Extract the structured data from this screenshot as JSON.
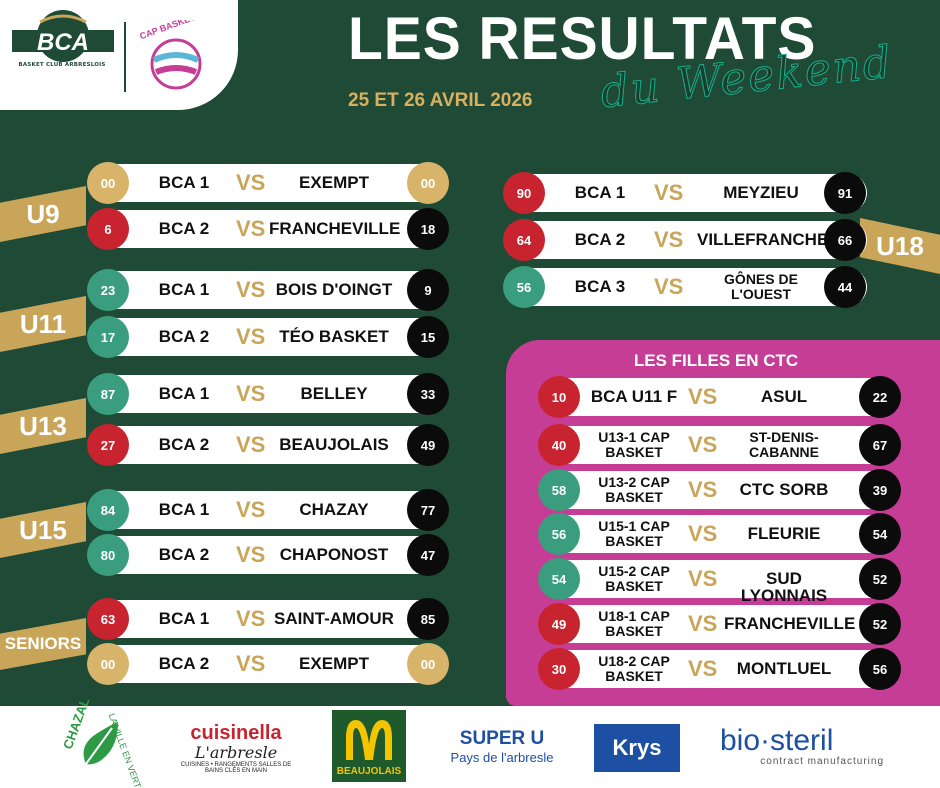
{
  "header": {
    "title": "LES RESULTATS",
    "subtitle": "du Weekend",
    "date": "25 ET 26 AVRIL 2026",
    "club_logo_text": "BCA",
    "club_logo_sub": "BASKET CLUB ARBRESLOIS",
    "cap_logo_text": "CAP BASKET"
  },
  "vs_label": "VS",
  "categories": {
    "u9": "U9",
    "u11": "U11",
    "u13": "U13",
    "u15": "U15",
    "seniors": "SENIORS",
    "u18": "U18"
  },
  "left_matches": [
    {
      "home_score": "00",
      "home": "BCA 1",
      "away": "EXEMPT",
      "away_score": "00"
    },
    {
      "home_score": "6",
      "home": "BCA 2",
      "away": "FRANCHEVILLE",
      "away_score": "18"
    },
    {
      "home_score": "23",
      "home": "BCA 1",
      "away": "BOIS D'OINGT",
      "away_score": "9"
    },
    {
      "home_score": "17",
      "home": "BCA 2",
      "away": "TÉO BASKET",
      "away_score": "15"
    },
    {
      "home_score": "87",
      "home": "BCA 1",
      "away": "BELLEY",
      "away_score": "33"
    },
    {
      "home_score": "27",
      "home": "BCA 2",
      "away": "BEAUJOLAIS",
      "away_score": "49"
    },
    {
      "home_score": "84",
      "home": "BCA 1",
      "away": "CHAZAY",
      "away_score": "77"
    },
    {
      "home_score": "80",
      "home": "BCA 2",
      "away": "CHAPONOST",
      "away_score": "47"
    },
    {
      "home_score": "63",
      "home": "BCA 1",
      "away": "SAINT-AMOUR",
      "away_score": "85"
    },
    {
      "home_score": "00",
      "home": "BCA 2",
      "away": "EXEMPT",
      "away_score": "00"
    }
  ],
  "u18_matches": [
    {
      "home_score": "90",
      "home": "BCA 1",
      "away": "MEYZIEU",
      "away_score": "91"
    },
    {
      "home_score": "64",
      "home": "BCA 2",
      "away": "VILLEFRANCHE",
      "away_score": "66"
    },
    {
      "home_score": "56",
      "home": "BCA 3",
      "away": "GÔNES DE L'OUEST",
      "away_score": "44"
    }
  ],
  "ctc": {
    "title": "LES FILLES EN CTC",
    "matches": [
      {
        "home_score": "10",
        "home": "BCA U11 F",
        "away": "ASUL",
        "away_score": "22"
      },
      {
        "home_score": "40",
        "home": "U13-1 CAP BASKET",
        "away": "ST-DENIS-CABANNE",
        "away_score": "67"
      },
      {
        "home_score": "58",
        "home": "U13-2 CAP BASKET",
        "away": "CTC SORB",
        "away_score": "39"
      },
      {
        "home_score": "56",
        "home": "U15-1 CAP BASKET",
        "away": "FLEURIE",
        "away_score": "54"
      },
      {
        "home_score": "54",
        "home": "U15-2 CAP BASKET",
        "away": "SUD LYONNAIS",
        "away_score": "52"
      },
      {
        "home_score": "49",
        "home": "U18-1 CAP BASKET",
        "away": "FRANCHEVILLE",
        "away_score": "52"
      },
      {
        "home_score": "30",
        "home": "U18-2 CAP BASKET",
        "away": "MONTLUEL",
        "away_score": "56"
      }
    ]
  },
  "sponsors": {
    "chazal": {
      "name": "CHAZAL",
      "tagline": "LA VILLE EN VERT"
    },
    "cuisinella": {
      "name": "cuisinella",
      "town": "L'arbresle",
      "tagline": "CUISINES • RANGEMENTS SALLES DE BAINS CLÉS EN MAIN"
    },
    "mcdonalds": {
      "name": "BEAUJOLAIS"
    },
    "superu": {
      "name": "SUPER U",
      "tagline": "Pays de l'arbresle"
    },
    "krys": {
      "name": "Krys"
    },
    "biosteril": {
      "name": "bio·steril",
      "tagline": "contract manufacturing"
    }
  },
  "colors": {
    "background": "#1f4a36",
    "gold": "#c9a55a",
    "pink": "#c63d96",
    "score_red": "#c8242f",
    "score_green": "#3a9e7e",
    "score_black": "#0b0b0b"
  }
}
